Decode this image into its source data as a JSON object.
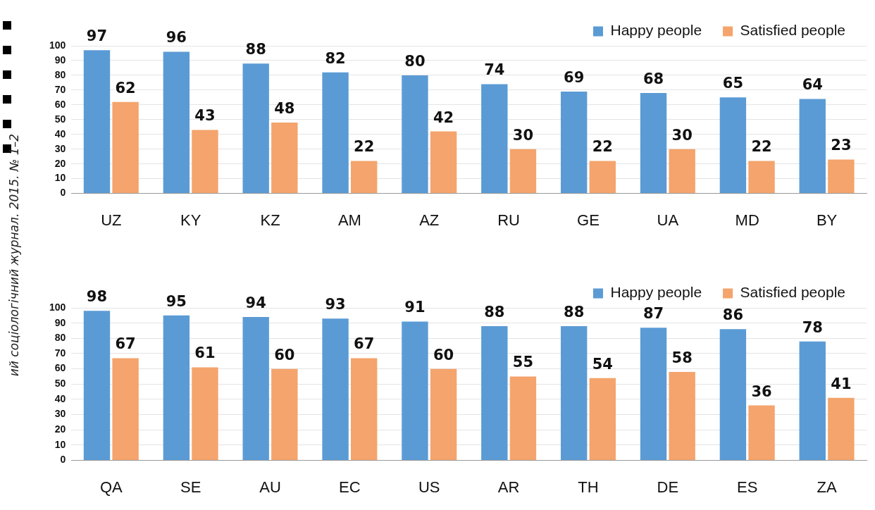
{
  "chart_data": [
    {
      "type": "bar",
      "categories": [
        "UZ",
        "KY",
        "KZ",
        "AM",
        "AZ",
        "RU",
        "GE",
        "UA",
        "MD",
        "BY"
      ],
      "series": [
        {
          "name": "Happy people",
          "color": "#5b9bd5",
          "values": [
            97,
            96,
            88,
            82,
            80,
            74,
            69,
            68,
            65,
            64
          ]
        },
        {
          "name": "Satisfied people",
          "color": "#f4a46c",
          "values": [
            62,
            43,
            48,
            22,
            42,
            30,
            22,
            30,
            22,
            23
          ]
        }
      ],
      "ylim": [
        0,
        100
      ],
      "yticks": [
        0,
        10,
        20,
        30,
        40,
        50,
        60,
        70,
        80,
        90,
        100
      ],
      "grid": "y",
      "legend": "top right",
      "data_labels": true,
      "annotations": [
        "ий соціологічний журнал. 2015. № 1–2"
      ]
    },
    {
      "type": "bar",
      "categories": [
        "QA",
        "SE",
        "AU",
        "EC",
        "US",
        "AR",
        "TH",
        "DE",
        "ES",
        "ZA"
      ],
      "series": [
        {
          "name": "Happy people",
          "color": "#5b9bd5",
          "values": [
            98,
            95,
            94,
            93,
            91,
            88,
            88,
            87,
            86,
            78
          ]
        },
        {
          "name": "Satisfied people",
          "color": "#f4a46c",
          "values": [
            67,
            61,
            60,
            67,
            60,
            55,
            54,
            58,
            36,
            41
          ]
        }
      ],
      "ylim": [
        0,
        100
      ],
      "yticks": [
        0,
        10,
        20,
        30,
        40,
        50,
        60,
        70,
        80,
        90,
        100
      ],
      "grid": "y",
      "legend": "top right",
      "data_labels": true
    }
  ]
}
